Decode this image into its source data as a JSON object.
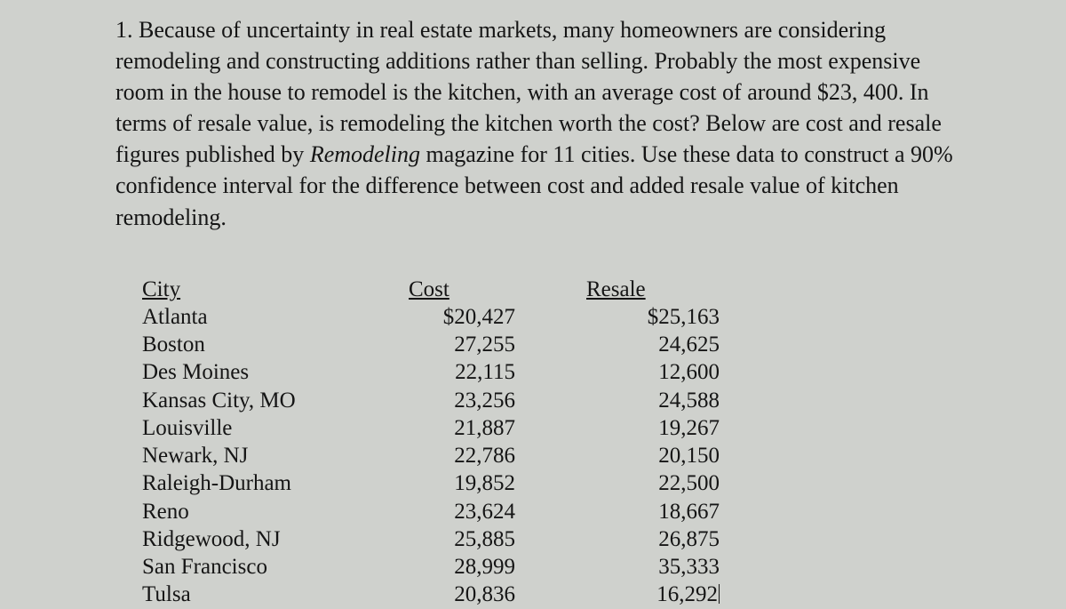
{
  "question": {
    "prefix": "1. Because of uncertainty in real estate markets, many homeowners are considering remodeling and constructing additions rather than selling. Probably the most expensive room in the house to remodel is the kitchen, with an average cost of around $23, 400. In terms of resale value, is remodeling the kitchen worth the cost? Below are cost and resale figures published by ",
    "italic": "Remodeling",
    "suffix": " magazine for 11 cities. Use these data to construct a 90% confidence interval for the difference between cost and added resale value of kitchen remodeling."
  },
  "table": {
    "headers": {
      "city": "City",
      "cost": "Cost",
      "resale": "Resale"
    },
    "rows": [
      {
        "city": "Atlanta",
        "cost": "$20,427",
        "resale": "$25,163"
      },
      {
        "city": "Boston",
        "cost": "27,255",
        "resale": "24,625"
      },
      {
        "city": "Des Moines",
        "cost": "22,115",
        "resale": "12,600"
      },
      {
        "city": "Kansas City, MO",
        "cost": "23,256",
        "resale": "24,588"
      },
      {
        "city": "Louisville",
        "cost": "21,887",
        "resale": "19,267"
      },
      {
        "city": "Newark, NJ",
        "cost": "22,786",
        "resale": "20,150"
      },
      {
        "city": "Raleigh-Durham",
        "cost": "19,852",
        "resale": "22,500"
      },
      {
        "city": "Reno",
        "cost": "23,624",
        "resale": "18,667"
      },
      {
        "city": "Ridgewood, NJ",
        "cost": "25,885",
        "resale": "26,875"
      },
      {
        "city": "San Francisco",
        "cost": "28,999",
        "resale": "35,333"
      },
      {
        "city": "Tulsa",
        "cost": "20,836",
        "resale": "16,292"
      }
    ]
  }
}
